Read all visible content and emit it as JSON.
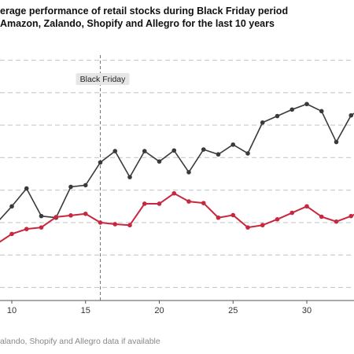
{
  "chart_data": {
    "type": "line",
    "title": "erage performance of retail stocks during Black Friday period",
    "subtitle": "Amazon, Zalando, Shopify and Allegro for the last 10 years",
    "caption": "alando, Shopify and Allegro data if available",
    "xlabel": "",
    "ylabel": "",
    "xlim": [
      9.2,
      33.2
    ],
    "ylim": [
      -0.4,
      7.4
    ],
    "x_ticks": [
      10,
      15,
      20,
      25,
      30
    ],
    "grid": "horizontal dashed",
    "annotation": {
      "label": "Black Friday",
      "x": 16
    },
    "x": [
      9,
      10,
      11,
      12,
      13,
      14,
      15,
      16,
      17,
      18,
      19,
      20,
      21,
      22,
      23,
      24,
      25,
      26,
      27,
      28,
      29,
      30,
      31,
      32,
      33,
      34
    ],
    "series": [
      {
        "color": "#3a3a3a",
        "values": [
          2.0,
          2.5,
          3.05,
          2.2,
          2.15,
          3.1,
          3.15,
          3.85,
          4.2,
          3.4,
          4.2,
          3.88,
          4.22,
          3.55,
          4.25,
          4.1,
          4.4,
          4.13,
          5.08,
          5.28,
          5.48,
          5.65,
          5.43,
          4.48,
          5.3,
          5.6
        ]
      },
      {
        "color": "#c8283f",
        "values": [
          1.35,
          1.65,
          1.8,
          1.85,
          2.17,
          2.22,
          2.27,
          2.0,
          1.95,
          1.92,
          2.58,
          2.58,
          2.9,
          2.65,
          2.6,
          2.15,
          2.23,
          1.85,
          1.92,
          2.1,
          2.3,
          2.5,
          2.18,
          2.03,
          2.2,
          2.4
        ]
      }
    ]
  }
}
